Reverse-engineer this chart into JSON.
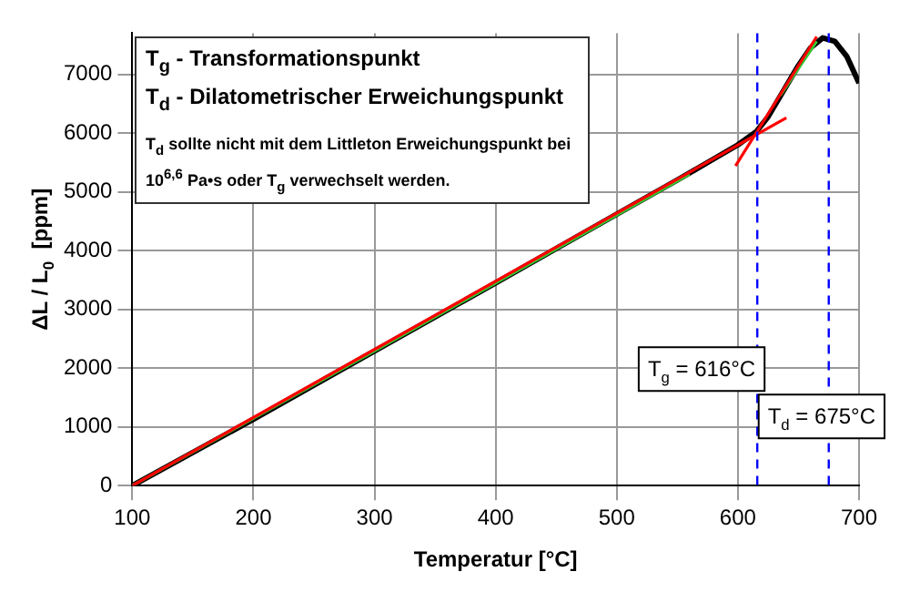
{
  "chart_data": {
    "type": "line",
    "xlabel": "Temperatur [°C]",
    "ylabel": "ΔL / L$_{0}$  [ppm]",
    "xlim": [
      100,
      700
    ],
    "xticks": [
      100,
      200,
      300,
      400,
      500,
      600,
      700
    ],
    "ylim": [
      0,
      7700
    ],
    "yticks": [
      0,
      1000,
      2000,
      3000,
      4000,
      5000,
      6000,
      7000
    ],
    "grid": true,
    "legend": false,
    "marker": "none",
    "series": [
      {
        "color": "#000000",
        "x": [
          100,
          200,
          300,
          400,
          500,
          550,
          580,
          600,
          615,
          625,
          637,
          650,
          660,
          670,
          680,
          690,
          700
        ],
        "values": [
          0,
          1130,
          2290,
          3450,
          4620,
          5200,
          5560,
          5800,
          6020,
          6280,
          6700,
          7150,
          7450,
          7620,
          7560,
          7300,
          6850
        ]
      },
      {
        "color": "#33cc33",
        "x": [
          100,
          300,
          560,
          600,
          635,
          665
        ],
        "values": [
          0,
          2290,
          5300,
          null,
          6640,
          7560
        ]
      },
      {
        "color": "#ff0000",
        "x": [
          100,
          640
        ],
        "values": [
          0,
          6260
        ]
      },
      {
        "color": "#ff0000",
        "x": [
          598,
          665
        ],
        "values": [
          5440,
          7640
        ]
      }
    ],
    "ref_lines": [
      {
        "axis": "x",
        "value": 616,
        "label": "T$_{g}$ = 616°C",
        "color": "#0000ff",
        "line_style": "dashed"
      },
      {
        "axis": "x",
        "value": 675,
        "label": "T$_{d}$ = 675°C",
        "color": "#0000ff",
        "line_style": "dashed"
      }
    ],
    "annotations": [
      "T$_{g}$ - Transformationspunkt",
      "T$_{d}$ - Dilatometrischer Erweichungspunkt",
      "T$_{d}$ sollte nicht mit dem Littleton Erweichungspunkt bei 10$^{6,6}$ Pa•s oder T$_{g}$ verwechselt werden."
    ]
  }
}
